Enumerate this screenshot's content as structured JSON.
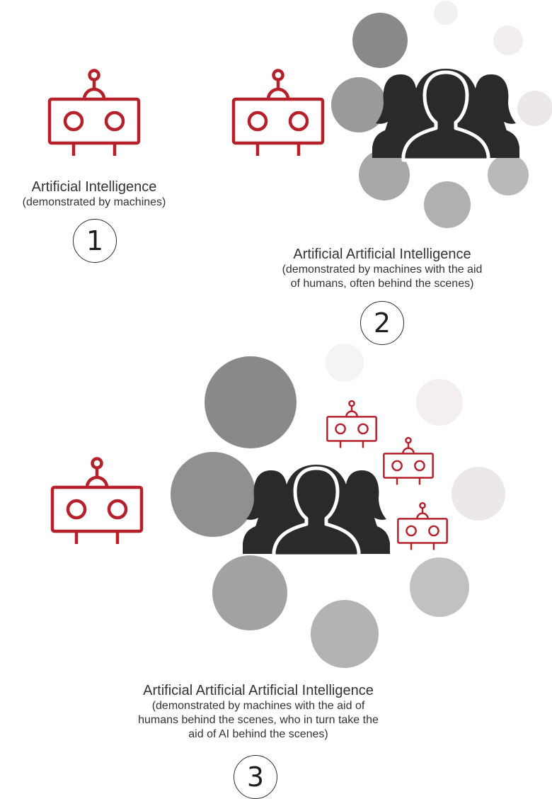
{
  "colors": {
    "robot": "#b5202a",
    "people": "#2a2a2a",
    "caption": "#333333"
  },
  "icons": [
    "robot-icon",
    "people-group-icon"
  ],
  "panels": [
    {
      "title": "Artificial Intelligence",
      "subtitle": [
        "(demonstrated by machines)"
      ],
      "number": "1"
    },
    {
      "title": "Artificial Artificial Intelligence",
      "subtitle": [
        "(demonstrated by machines with the aid",
        "of humans, often behind the scenes)"
      ],
      "number": "2"
    },
    {
      "title": "Artificial Artificial Artificial Intelligence",
      "subtitle": [
        "(demonstrated by machines with the aid of",
        "humans behind the scenes, who in turn take the",
        "aid of AI behind the scenes)"
      ],
      "number": "3"
    }
  ]
}
